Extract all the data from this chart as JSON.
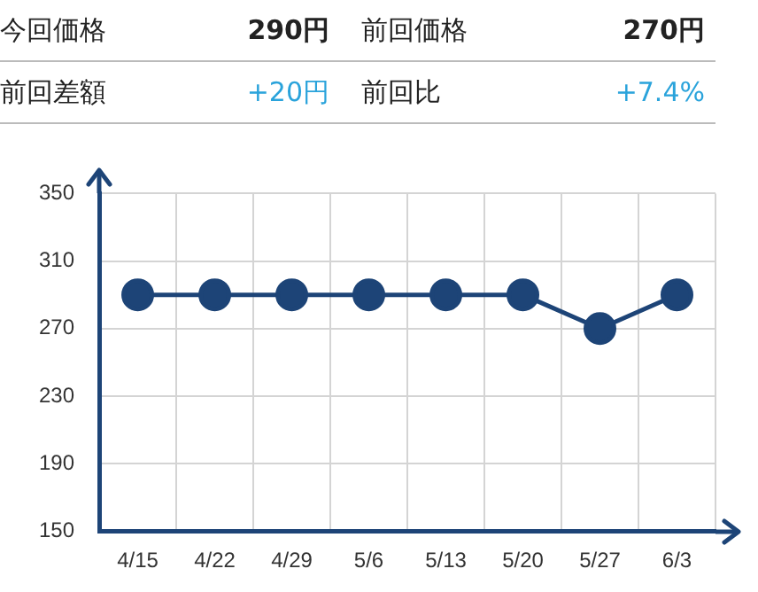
{
  "chart_data": {
    "type": "line",
    "annotations": [
      "今回価格",
      "290円",
      "前回価格",
      "270円",
      "前回差額",
      "+20円",
      "前回比",
      "+7.4%"
    ],
    "categories": [
      "4/15",
      "4/22",
      "4/29",
      "5/6",
      "5/13",
      "5/20",
      "5/27",
      "6/3"
    ],
    "series": [
      {
        "color": "#1d4477",
        "values": [
          290,
          290,
          290,
          290,
          290,
          290,
          270,
          290
        ]
      }
    ],
    "ylim": [
      150,
      350
    ],
    "yticks": [
      150,
      190,
      230,
      270,
      310,
      350
    ],
    "grid": true,
    "marker": "circle",
    "line_style": "solid",
    "legend": false
  }
}
